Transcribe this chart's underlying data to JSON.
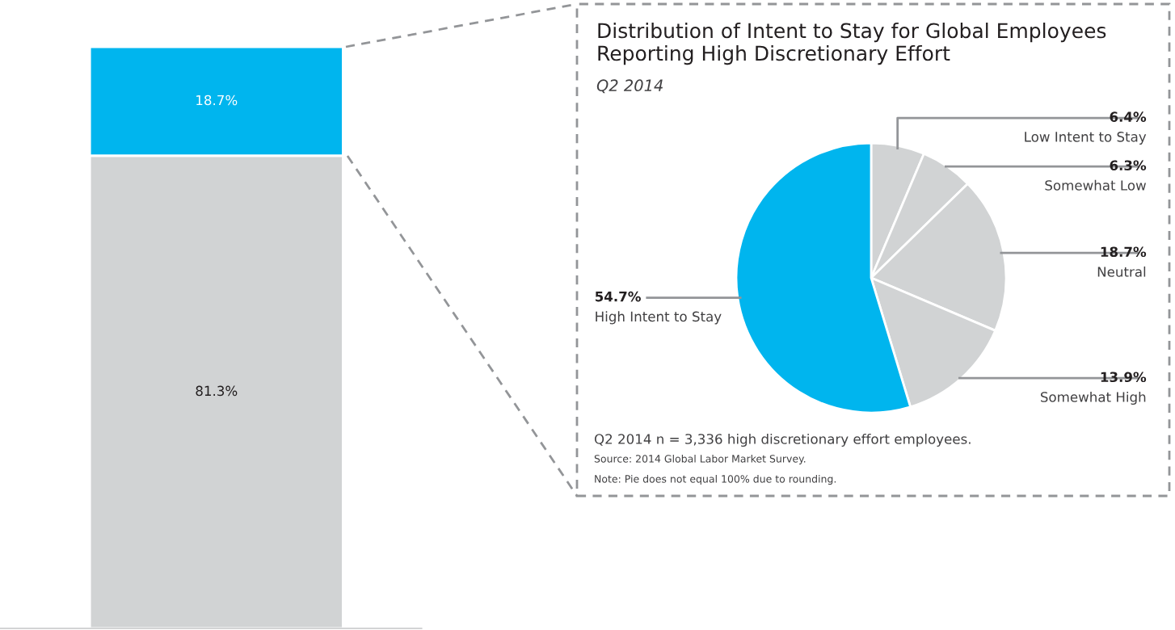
{
  "chart_data": [
    {
      "type": "bar",
      "categories": [
        null
      ],
      "stacked": true,
      "series": [
        {
          "color": "#d1d3d4",
          "values": [
            81.3
          ],
          "value_labels": [
            "81.3%"
          ]
        },
        {
          "color": "#00b5ee",
          "values": [
            18.7
          ],
          "value_labels": [
            "18.7%"
          ]
        }
      ]
    },
    {
      "type": "pie",
      "title": "Distribution of Intent to Stay for Global Employees Reporting High Discretionary Effort",
      "subtitle": "Q2 2014",
      "categories": [
        "Low Intent to Stay",
        "Somewhat Low",
        "Neutral",
        "Somewhat High",
        "High Intent to Stay"
      ],
      "values": [
        6.4,
        6.3,
        18.7,
        13.9,
        54.7
      ],
      "value_labels": [
        "6.4%",
        "6.3%",
        "18.7%",
        "13.9%",
        "54.7%"
      ],
      "colors": [
        "#d1d3d4",
        "#d1d3d4",
        "#d1d3d4",
        "#d1d3d4",
        "#00b5ee"
      ],
      "annotations": [
        "Q2 2014 n = 3,336 high discretionary effort employees.",
        "Source: 2014 Global Labor Market Survey.",
        "Note: Pie does not equal 100% due to rounding."
      ]
    }
  ]
}
